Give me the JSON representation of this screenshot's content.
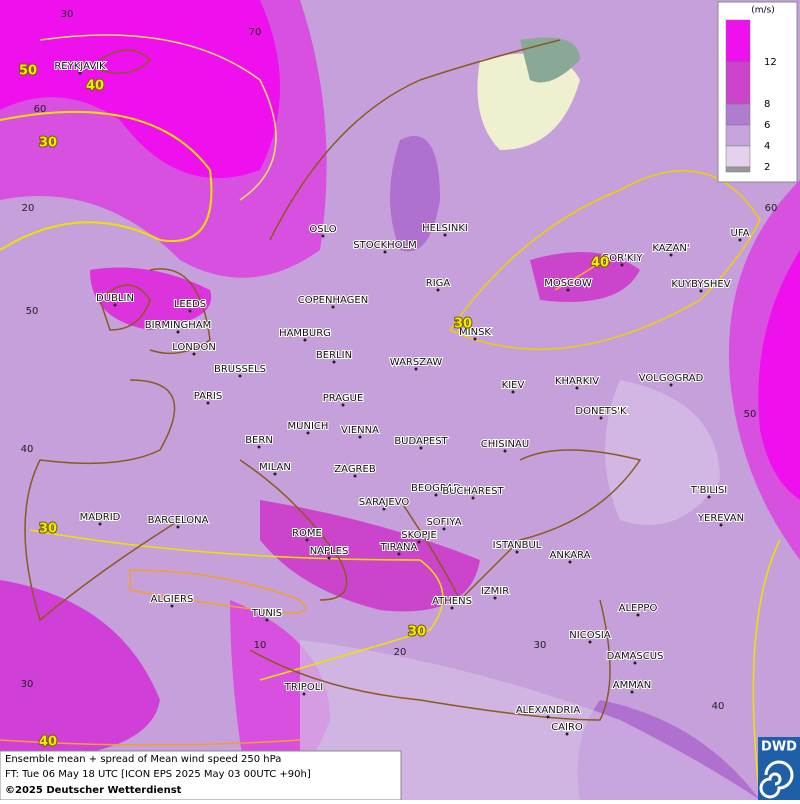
{
  "map": {
    "legend": {
      "unit": "(m/s)",
      "levels": [
        {
          "value": 12,
          "color": "#ee11ee"
        },
        {
          "value": 8,
          "color": "#cc44cc"
        },
        {
          "value": 6,
          "color": "#b07cd0"
        },
        {
          "value": 4,
          "color": "#c8a4de"
        },
        {
          "value": 2,
          "color": "#e2d2ee"
        }
      ]
    },
    "cities": [
      "REYKJAVIK",
      "OSLO",
      "STOCKHOLM",
      "HELSINKI",
      "GOR'KIY",
      "KAZAN'",
      "UFA",
      "MOSCOW",
      "KUYBYSHEV",
      "RIGA",
      "DUBLIN",
      "LEEDS",
      "COPENHAGEN",
      "BIRMINGHAM",
      "HAMBURG",
      "MINSK",
      "LONDON",
      "BERLIN",
      "WARSZAW",
      "BRUSSELS",
      "KIEV",
      "KHARKIV",
      "VOLGOGRAD",
      "PARIS",
      "PRAGUE",
      "DONETS'K",
      "MUNICH",
      "VIENNA",
      "BERN",
      "BUDAPEST",
      "CHISINAU",
      "MILAN",
      "ZAGREB",
      "BEOGRAD",
      "BUCHAREST",
      "T'BILISI",
      "SARAJEVO",
      "MADRID",
      "BARCELONA",
      "SOFIYA",
      "YEREVAN",
      "ROME",
      "SKOPJE",
      "ISTANBUL",
      "NAPLES",
      "TIRANA",
      "ANKARA",
      "ALGIERS",
      "IZMIR",
      "ATHENS",
      "ALEPPO",
      "TUNIS",
      "NICOSIA",
      "DAMASCUS",
      "TRIPOLI",
      "AMMAN",
      "ALEXANDRIA",
      "CAIRO"
    ],
    "contour_labels": [
      50,
      40,
      30,
      40,
      30,
      30,
      30,
      40
    ],
    "grid_labels": [
      30,
      70,
      60,
      20,
      50,
      40,
      60,
      50,
      10,
      20,
      30,
      40,
      30
    ],
    "footer": [
      "Ensemble mean + spread of Mean wind speed 250 hPa",
      "FT: Tue 06 May 18 UTC [ICON EPS 2025 May 03 00UTC +90h]",
      "©2025 Deutscher Wetterdienst"
    ],
    "logo": "DWD"
  }
}
